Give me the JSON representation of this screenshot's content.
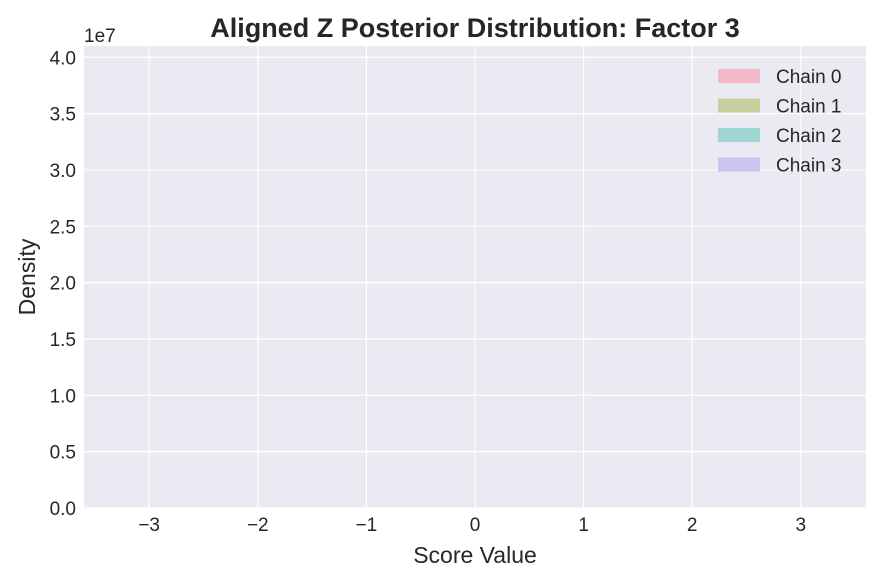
{
  "chart_data": {
    "type": "bar",
    "title": "Aligned Z Posterior Distribution: Factor 3",
    "xlabel": "Score Value",
    "ylabel": "Density",
    "y_offset_text": "1e7",
    "xlim": [
      -3.6,
      3.6
    ],
    "ylim": [
      0,
      4.1
    ],
    "y_multiplier": 10000000,
    "xticks": [
      -3,
      -2,
      -1,
      0,
      1,
      2,
      3
    ],
    "xtick_labels": [
      "−3",
      "−2",
      "−1",
      "0",
      "1",
      "2",
      "3"
    ],
    "yticks": [
      0.0,
      0.5,
      1.0,
      1.5,
      2.0,
      2.5,
      3.0,
      3.5,
      4.0
    ],
    "ytick_labels": [
      "0.0",
      "0.5",
      "1.0",
      "1.5",
      "2.0",
      "2.5",
      "3.0",
      "3.5",
      "4.0"
    ],
    "grid": true,
    "legend_position": "top-right",
    "series": [
      {
        "name": "Chain 0",
        "color": "#f2b8c6"
      },
      {
        "name": "Chain 1",
        "color": "#c6cf9e"
      },
      {
        "name": "Chain 2",
        "color": "#a1d5d2"
      },
      {
        "name": "Chain 3",
        "color": "#cdc3f3"
      }
    ],
    "plot_background": "#eaeaf2"
  }
}
